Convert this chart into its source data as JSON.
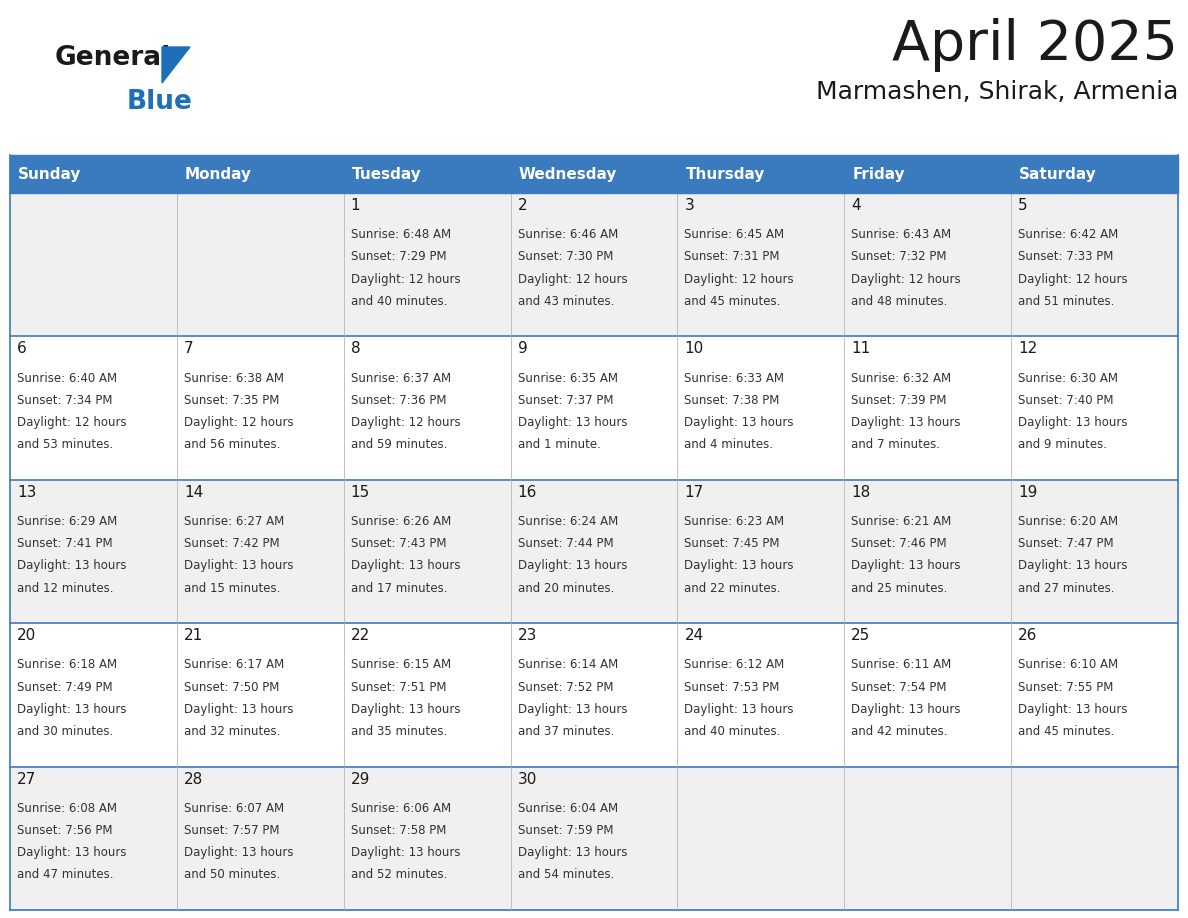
{
  "title": "April 2025",
  "subtitle": "Marmashen, Shirak, Armenia",
  "header_bg": "#3a7abf",
  "header_text": "#ffffff",
  "row_bg_light": "#f0f0f0",
  "row_bg_white": "#ffffff",
  "border_color": "#3a7abf",
  "text_color": "#333333",
  "day_number_color": "#1a1a1a",
  "day_headers": [
    "Sunday",
    "Monday",
    "Tuesday",
    "Wednesday",
    "Thursday",
    "Friday",
    "Saturday"
  ],
  "days": [
    {
      "day": null,
      "col": 0,
      "row": 0
    },
    {
      "day": null,
      "col": 1,
      "row": 0
    },
    {
      "day": 1,
      "col": 2,
      "row": 0,
      "sunrise": "6:48 AM",
      "sunset": "7:29 PM",
      "daylight_line1": "Daylight: 12 hours",
      "daylight_line2": "and 40 minutes."
    },
    {
      "day": 2,
      "col": 3,
      "row": 0,
      "sunrise": "6:46 AM",
      "sunset": "7:30 PM",
      "daylight_line1": "Daylight: 12 hours",
      "daylight_line2": "and 43 minutes."
    },
    {
      "day": 3,
      "col": 4,
      "row": 0,
      "sunrise": "6:45 AM",
      "sunset": "7:31 PM",
      "daylight_line1": "Daylight: 12 hours",
      "daylight_line2": "and 45 minutes."
    },
    {
      "day": 4,
      "col": 5,
      "row": 0,
      "sunrise": "6:43 AM",
      "sunset": "7:32 PM",
      "daylight_line1": "Daylight: 12 hours",
      "daylight_line2": "and 48 minutes."
    },
    {
      "day": 5,
      "col": 6,
      "row": 0,
      "sunrise": "6:42 AM",
      "sunset": "7:33 PM",
      "daylight_line1": "Daylight: 12 hours",
      "daylight_line2": "and 51 minutes."
    },
    {
      "day": 6,
      "col": 0,
      "row": 1,
      "sunrise": "6:40 AM",
      "sunset": "7:34 PM",
      "daylight_line1": "Daylight: 12 hours",
      "daylight_line2": "and 53 minutes."
    },
    {
      "day": 7,
      "col": 1,
      "row": 1,
      "sunrise": "6:38 AM",
      "sunset": "7:35 PM",
      "daylight_line1": "Daylight: 12 hours",
      "daylight_line2": "and 56 minutes."
    },
    {
      "day": 8,
      "col": 2,
      "row": 1,
      "sunrise": "6:37 AM",
      "sunset": "7:36 PM",
      "daylight_line1": "Daylight: 12 hours",
      "daylight_line2": "and 59 minutes."
    },
    {
      "day": 9,
      "col": 3,
      "row": 1,
      "sunrise": "6:35 AM",
      "sunset": "7:37 PM",
      "daylight_line1": "Daylight: 13 hours",
      "daylight_line2": "and 1 minute."
    },
    {
      "day": 10,
      "col": 4,
      "row": 1,
      "sunrise": "6:33 AM",
      "sunset": "7:38 PM",
      "daylight_line1": "Daylight: 13 hours",
      "daylight_line2": "and 4 minutes."
    },
    {
      "day": 11,
      "col": 5,
      "row": 1,
      "sunrise": "6:32 AM",
      "sunset": "7:39 PM",
      "daylight_line1": "Daylight: 13 hours",
      "daylight_line2": "and 7 minutes."
    },
    {
      "day": 12,
      "col": 6,
      "row": 1,
      "sunrise": "6:30 AM",
      "sunset": "7:40 PM",
      "daylight_line1": "Daylight: 13 hours",
      "daylight_line2": "and 9 minutes."
    },
    {
      "day": 13,
      "col": 0,
      "row": 2,
      "sunrise": "6:29 AM",
      "sunset": "7:41 PM",
      "daylight_line1": "Daylight: 13 hours",
      "daylight_line2": "and 12 minutes."
    },
    {
      "day": 14,
      "col": 1,
      "row": 2,
      "sunrise": "6:27 AM",
      "sunset": "7:42 PM",
      "daylight_line1": "Daylight: 13 hours",
      "daylight_line2": "and 15 minutes."
    },
    {
      "day": 15,
      "col": 2,
      "row": 2,
      "sunrise": "6:26 AM",
      "sunset": "7:43 PM",
      "daylight_line1": "Daylight: 13 hours",
      "daylight_line2": "and 17 minutes."
    },
    {
      "day": 16,
      "col": 3,
      "row": 2,
      "sunrise": "6:24 AM",
      "sunset": "7:44 PM",
      "daylight_line1": "Daylight: 13 hours",
      "daylight_line2": "and 20 minutes."
    },
    {
      "day": 17,
      "col": 4,
      "row": 2,
      "sunrise": "6:23 AM",
      "sunset": "7:45 PM",
      "daylight_line1": "Daylight: 13 hours",
      "daylight_line2": "and 22 minutes."
    },
    {
      "day": 18,
      "col": 5,
      "row": 2,
      "sunrise": "6:21 AM",
      "sunset": "7:46 PM",
      "daylight_line1": "Daylight: 13 hours",
      "daylight_line2": "and 25 minutes."
    },
    {
      "day": 19,
      "col": 6,
      "row": 2,
      "sunrise": "6:20 AM",
      "sunset": "7:47 PM",
      "daylight_line1": "Daylight: 13 hours",
      "daylight_line2": "and 27 minutes."
    },
    {
      "day": 20,
      "col": 0,
      "row": 3,
      "sunrise": "6:18 AM",
      "sunset": "7:49 PM",
      "daylight_line1": "Daylight: 13 hours",
      "daylight_line2": "and 30 minutes."
    },
    {
      "day": 21,
      "col": 1,
      "row": 3,
      "sunrise": "6:17 AM",
      "sunset": "7:50 PM",
      "daylight_line1": "Daylight: 13 hours",
      "daylight_line2": "and 32 minutes."
    },
    {
      "day": 22,
      "col": 2,
      "row": 3,
      "sunrise": "6:15 AM",
      "sunset": "7:51 PM",
      "daylight_line1": "Daylight: 13 hours",
      "daylight_line2": "and 35 minutes."
    },
    {
      "day": 23,
      "col": 3,
      "row": 3,
      "sunrise": "6:14 AM",
      "sunset": "7:52 PM",
      "daylight_line1": "Daylight: 13 hours",
      "daylight_line2": "and 37 minutes."
    },
    {
      "day": 24,
      "col": 4,
      "row": 3,
      "sunrise": "6:12 AM",
      "sunset": "7:53 PM",
      "daylight_line1": "Daylight: 13 hours",
      "daylight_line2": "and 40 minutes."
    },
    {
      "day": 25,
      "col": 5,
      "row": 3,
      "sunrise": "6:11 AM",
      "sunset": "7:54 PM",
      "daylight_line1": "Daylight: 13 hours",
      "daylight_line2": "and 42 minutes."
    },
    {
      "day": 26,
      "col": 6,
      "row": 3,
      "sunrise": "6:10 AM",
      "sunset": "7:55 PM",
      "daylight_line1": "Daylight: 13 hours",
      "daylight_line2": "and 45 minutes."
    },
    {
      "day": 27,
      "col": 0,
      "row": 4,
      "sunrise": "6:08 AM",
      "sunset": "7:56 PM",
      "daylight_line1": "Daylight: 13 hours",
      "daylight_line2": "and 47 minutes."
    },
    {
      "day": 28,
      "col": 1,
      "row": 4,
      "sunrise": "6:07 AM",
      "sunset": "7:57 PM",
      "daylight_line1": "Daylight: 13 hours",
      "daylight_line2": "and 50 minutes."
    },
    {
      "day": 29,
      "col": 2,
      "row": 4,
      "sunrise": "6:06 AM",
      "sunset": "7:58 PM",
      "daylight_line1": "Daylight: 13 hours",
      "daylight_line2": "and 52 minutes."
    },
    {
      "day": 30,
      "col": 3,
      "row": 4,
      "sunrise": "6:04 AM",
      "sunset": "7:59 PM",
      "daylight_line1": "Daylight: 13 hours",
      "daylight_line2": "and 54 minutes."
    },
    {
      "day": null,
      "col": 4,
      "row": 4
    },
    {
      "day": null,
      "col": 5,
      "row": 4
    },
    {
      "day": null,
      "col": 6,
      "row": 4
    }
  ],
  "logo_general_color": "#1a1a1a",
  "logo_blue_color": "#1e6fba",
  "logo_triangle_color": "#1e6fba",
  "title_fontsize": 40,
  "subtitle_fontsize": 18,
  "header_fontsize": 11,
  "day_num_fontsize": 11,
  "cell_text_fontsize": 8.5
}
